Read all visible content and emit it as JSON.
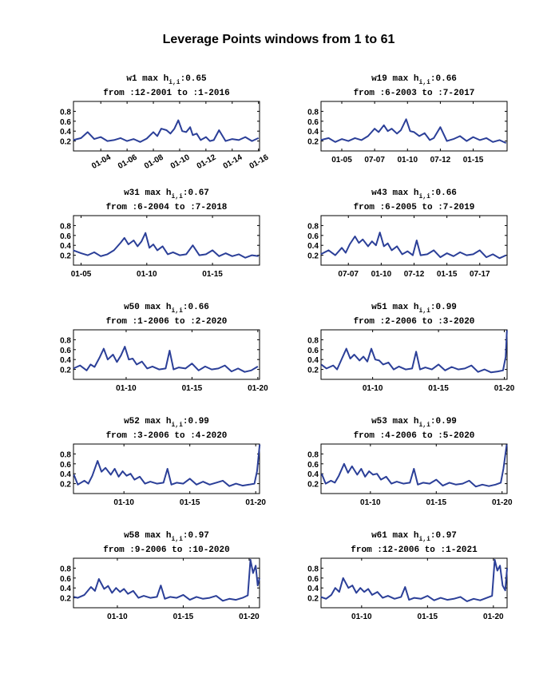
{
  "figure": {
    "title": "Leverage Points  windows from 1 to 61"
  },
  "style": {
    "line_color": "#2b3f98",
    "axis_color": "#000000",
    "background": "#ffffff"
  },
  "chart_data": [
    {
      "type": "line",
      "window": "1",
      "title_parts": [
        "w1 max h",
        "i,i",
        ":0.65"
      ],
      "subtitle": "from :12-2001 to :1-2016",
      "x_range": [
        2001.92,
        2016.08
      ],
      "ylim": [
        0,
        1
      ],
      "yticks": [
        0.2,
        0.4,
        0.6,
        0.8
      ],
      "xticks": [
        {
          "label": "01-04",
          "x": 2004
        },
        {
          "label": "01-06",
          "x": 2006
        },
        {
          "label": "01-08",
          "x": 2008
        },
        {
          "label": "01-10",
          "x": 2010
        },
        {
          "label": "01-12",
          "x": 2012
        },
        {
          "label": "01-14",
          "x": 2014
        },
        {
          "label": "01-16",
          "x": 2016
        }
      ],
      "xtick_rotation": -30,
      "x": [
        2001.9,
        2002.5,
        2003.0,
        2003.5,
        2004.0,
        2004.5,
        2005.0,
        2005.5,
        2006.0,
        2006.5,
        2007.0,
        2007.5,
        2008.0,
        2008.3,
        2008.6,
        2009.0,
        2009.3,
        2009.6,
        2009.9,
        2010.2,
        2010.5,
        2010.8,
        2011.0,
        2011.3,
        2011.6,
        2012.0,
        2012.3,
        2012.6,
        2013.0,
        2013.5,
        2014.0,
        2014.5,
        2015.0,
        2015.5,
        2016.0
      ],
      "values": [
        0.22,
        0.26,
        0.38,
        0.24,
        0.28,
        0.2,
        0.22,
        0.26,
        0.2,
        0.24,
        0.18,
        0.25,
        0.38,
        0.3,
        0.45,
        0.42,
        0.35,
        0.45,
        0.62,
        0.4,
        0.38,
        0.48,
        0.32,
        0.35,
        0.22,
        0.28,
        0.2,
        0.22,
        0.42,
        0.2,
        0.24,
        0.22,
        0.28,
        0.2,
        0.26
      ]
    },
    {
      "type": "line",
      "window": "19",
      "title_parts": [
        "w19 max h",
        "i,i",
        ":0.66"
      ],
      "subtitle": "from :6-2003 to :7-2017",
      "x_range": [
        2003.42,
        2017.58
      ],
      "ylim": [
        0,
        1
      ],
      "yticks": [
        0.2,
        0.4,
        0.6,
        0.8
      ],
      "xticks": [
        {
          "label": "01-05",
          "x": 2005
        },
        {
          "label": "07-07",
          "x": 2007.5
        },
        {
          "label": "01-10",
          "x": 2010
        },
        {
          "label": "07-12",
          "x": 2012.5
        },
        {
          "label": "01-15",
          "x": 2015
        }
      ],
      "xtick_rotation": 0,
      "x": [
        2003.4,
        2004.0,
        2004.5,
        2005.0,
        2005.5,
        2006.0,
        2006.5,
        2007.0,
        2007.5,
        2007.8,
        2008.2,
        2008.5,
        2008.8,
        2009.2,
        2009.5,
        2009.9,
        2010.2,
        2010.5,
        2010.9,
        2011.3,
        2011.7,
        2012.0,
        2012.5,
        2013.0,
        2013.5,
        2014.0,
        2014.5,
        2015.0,
        2015.5,
        2016.0,
        2016.5,
        2017.0,
        2017.5
      ],
      "values": [
        0.22,
        0.26,
        0.18,
        0.24,
        0.2,
        0.26,
        0.22,
        0.3,
        0.45,
        0.38,
        0.52,
        0.4,
        0.45,
        0.35,
        0.42,
        0.64,
        0.4,
        0.38,
        0.3,
        0.36,
        0.22,
        0.26,
        0.48,
        0.2,
        0.24,
        0.3,
        0.2,
        0.28,
        0.22,
        0.26,
        0.18,
        0.22,
        0.16
      ]
    },
    {
      "type": "line",
      "window": "31",
      "title_parts": [
        "w31 max h",
        "i,i",
        ":0.67"
      ],
      "subtitle": "from :6-2004 to :7-2018",
      "x_range": [
        2004.42,
        2018.58
      ],
      "ylim": [
        0,
        1
      ],
      "yticks": [
        0.2,
        0.4,
        0.6,
        0.8
      ],
      "xticks": [
        {
          "label": "01-05",
          "x": 2005
        },
        {
          "label": "01-10",
          "x": 2010
        },
        {
          "label": "01-15",
          "x": 2015
        }
      ],
      "xtick_rotation": 0,
      "x": [
        2004.4,
        2005.0,
        2005.5,
        2006.0,
        2006.5,
        2007.0,
        2007.5,
        2008.0,
        2008.3,
        2008.6,
        2009.0,
        2009.3,
        2009.6,
        2009.9,
        2010.2,
        2010.5,
        2010.8,
        2011.2,
        2011.6,
        2012.0,
        2012.5,
        2013.0,
        2013.5,
        2014.0,
        2014.5,
        2015.0,
        2015.5,
        2016.0,
        2016.5,
        2017.0,
        2017.5,
        2018.0,
        2018.5
      ],
      "values": [
        0.3,
        0.24,
        0.2,
        0.26,
        0.18,
        0.22,
        0.3,
        0.45,
        0.55,
        0.42,
        0.5,
        0.38,
        0.48,
        0.65,
        0.35,
        0.42,
        0.3,
        0.38,
        0.22,
        0.26,
        0.2,
        0.22,
        0.4,
        0.2,
        0.22,
        0.3,
        0.18,
        0.24,
        0.18,
        0.22,
        0.15,
        0.2,
        0.18
      ]
    },
    {
      "type": "line",
      "window": "43",
      "title_parts": [
        "w43 max h",
        "i,i",
        ":0.66"
      ],
      "subtitle": "from :6-2005 to :7-2019",
      "x_range": [
        2005.42,
        2019.58
      ],
      "ylim": [
        0,
        1
      ],
      "yticks": [
        0.2,
        0.4,
        0.6,
        0.8
      ],
      "xticks": [
        {
          "label": "07-07",
          "x": 2007.5
        },
        {
          "label": "01-10",
          "x": 2010
        },
        {
          "label": "07-12",
          "x": 2012.5
        },
        {
          "label": "01-15",
          "x": 2015
        },
        {
          "label": "07-17",
          "x": 2017.5
        }
      ],
      "xtick_rotation": 0,
      "x": [
        2005.4,
        2006.0,
        2006.5,
        2007.0,
        2007.3,
        2007.6,
        2008.0,
        2008.3,
        2008.6,
        2009.0,
        2009.3,
        2009.6,
        2009.9,
        2010.2,
        2010.5,
        2010.8,
        2011.2,
        2011.6,
        2012.0,
        2012.4,
        2012.7,
        2013.0,
        2013.5,
        2014.0,
        2014.5,
        2015.0,
        2015.5,
        2016.0,
        2016.5,
        2017.0,
        2017.5,
        2018.0,
        2018.5,
        2019.0,
        2019.5
      ],
      "values": [
        0.22,
        0.3,
        0.2,
        0.35,
        0.25,
        0.42,
        0.58,
        0.45,
        0.52,
        0.38,
        0.48,
        0.4,
        0.66,
        0.38,
        0.44,
        0.3,
        0.38,
        0.22,
        0.28,
        0.2,
        0.5,
        0.2,
        0.22,
        0.3,
        0.16,
        0.24,
        0.18,
        0.26,
        0.2,
        0.22,
        0.3,
        0.16,
        0.22,
        0.14,
        0.2
      ]
    },
    {
      "type": "line",
      "window": "50",
      "title_parts": [
        "w50 max h",
        "i,i",
        ":0.66"
      ],
      "subtitle": "from :1-2006 to :2-2020",
      "x_range": [
        2006.0,
        2020.13
      ],
      "ylim": [
        0,
        1
      ],
      "yticks": [
        0.2,
        0.4,
        0.6,
        0.8
      ],
      "xticks": [
        {
          "label": "01-10",
          "x": 2010
        },
        {
          "label": "01-15",
          "x": 2015
        },
        {
          "label": "01-20",
          "x": 2020
        }
      ],
      "xtick_rotation": 0,
      "x": [
        2006.0,
        2006.5,
        2007.0,
        2007.3,
        2007.6,
        2008.0,
        2008.3,
        2008.6,
        2009.0,
        2009.3,
        2009.6,
        2009.9,
        2010.2,
        2010.5,
        2010.8,
        2011.2,
        2011.6,
        2012.0,
        2012.5,
        2013.0,
        2013.3,
        2013.6,
        2014.0,
        2014.5,
        2015.0,
        2015.5,
        2016.0,
        2016.5,
        2017.0,
        2017.5,
        2018.0,
        2018.5,
        2019.0,
        2019.5,
        2020.0
      ],
      "values": [
        0.22,
        0.28,
        0.18,
        0.3,
        0.25,
        0.45,
        0.62,
        0.4,
        0.5,
        0.35,
        0.48,
        0.66,
        0.4,
        0.42,
        0.3,
        0.36,
        0.22,
        0.26,
        0.2,
        0.22,
        0.58,
        0.2,
        0.24,
        0.22,
        0.32,
        0.18,
        0.26,
        0.2,
        0.22,
        0.28,
        0.16,
        0.22,
        0.15,
        0.18,
        0.26
      ]
    },
    {
      "type": "line",
      "window": "51",
      "title_parts": [
        "w51 max h",
        "i,i",
        ":0.99"
      ],
      "subtitle": "from :2-2006 to :3-2020",
      "x_range": [
        2006.08,
        2020.21
      ],
      "ylim": [
        0,
        1
      ],
      "yticks": [
        0.2,
        0.4,
        0.6,
        0.8
      ],
      "xticks": [
        {
          "label": "01-10",
          "x": 2010
        },
        {
          "label": "01-15",
          "x": 2015
        },
        {
          "label": "01-20",
          "x": 2020
        }
      ],
      "xtick_rotation": 0,
      "x": [
        2006.1,
        2006.5,
        2007.0,
        2007.3,
        2007.6,
        2008.0,
        2008.3,
        2008.6,
        2009.0,
        2009.3,
        2009.6,
        2009.9,
        2010.2,
        2010.5,
        2010.8,
        2011.2,
        2011.6,
        2012.0,
        2012.5,
        2013.0,
        2013.3,
        2013.6,
        2014.0,
        2014.5,
        2015.0,
        2015.5,
        2016.0,
        2016.5,
        2017.0,
        2017.5,
        2018.0,
        2018.5,
        2019.0,
        2019.5,
        2019.9,
        2020.1,
        2020.2
      ],
      "values": [
        0.3,
        0.22,
        0.28,
        0.2,
        0.38,
        0.62,
        0.42,
        0.5,
        0.38,
        0.46,
        0.36,
        0.62,
        0.4,
        0.38,
        0.3,
        0.34,
        0.2,
        0.26,
        0.2,
        0.22,
        0.56,
        0.2,
        0.24,
        0.2,
        0.3,
        0.18,
        0.25,
        0.2,
        0.22,
        0.28,
        0.15,
        0.2,
        0.14,
        0.16,
        0.18,
        0.45,
        0.99
      ]
    },
    {
      "type": "line",
      "window": "52",
      "title_parts": [
        "w52 max h",
        "i,i",
        ":0.99"
      ],
      "subtitle": "from :3-2006 to :4-2020",
      "x_range": [
        2006.17,
        2020.29
      ],
      "ylim": [
        0,
        1
      ],
      "yticks": [
        0.2,
        0.4,
        0.6,
        0.8
      ],
      "xticks": [
        {
          "label": "01-10",
          "x": 2010
        },
        {
          "label": "01-15",
          "x": 2015
        },
        {
          "label": "01-20",
          "x": 2020
        }
      ],
      "xtick_rotation": 0,
      "x": [
        2006.2,
        2006.5,
        2007.0,
        2007.3,
        2007.6,
        2008.0,
        2008.3,
        2008.6,
        2009.0,
        2009.3,
        2009.6,
        2009.9,
        2010.2,
        2010.5,
        2010.8,
        2011.2,
        2011.6,
        2012.0,
        2012.5,
        2013.0,
        2013.3,
        2013.6,
        2014.0,
        2014.5,
        2015.0,
        2015.5,
        2016.0,
        2016.5,
        2017.0,
        2017.5,
        2018.0,
        2018.5,
        2019.0,
        2019.5,
        2019.9,
        2020.1,
        2020.3
      ],
      "values": [
        0.38,
        0.18,
        0.26,
        0.2,
        0.36,
        0.66,
        0.44,
        0.52,
        0.38,
        0.5,
        0.34,
        0.45,
        0.36,
        0.4,
        0.28,
        0.34,
        0.2,
        0.24,
        0.2,
        0.22,
        0.5,
        0.18,
        0.22,
        0.2,
        0.3,
        0.18,
        0.24,
        0.18,
        0.22,
        0.26,
        0.15,
        0.2,
        0.16,
        0.18,
        0.2,
        0.45,
        0.99
      ]
    },
    {
      "type": "line",
      "window": "53",
      "title_parts": [
        "w53 max h",
        "i,i",
        ":0.99"
      ],
      "subtitle": "from :4-2006 to :5-2020",
      "x_range": [
        2006.25,
        2020.38
      ],
      "ylim": [
        0,
        1
      ],
      "yticks": [
        0.2,
        0.4,
        0.6,
        0.8
      ],
      "xticks": [
        {
          "label": "01-10",
          "x": 2010
        },
        {
          "label": "01-15",
          "x": 2015
        },
        {
          "label": "01-20",
          "x": 2020
        }
      ],
      "xtick_rotation": 0,
      "x": [
        2006.3,
        2006.6,
        2007.0,
        2007.3,
        2007.6,
        2008.0,
        2008.3,
        2008.6,
        2009.0,
        2009.3,
        2009.6,
        2009.9,
        2010.2,
        2010.5,
        2010.8,
        2011.2,
        2011.6,
        2012.0,
        2012.5,
        2013.0,
        2013.3,
        2013.6,
        2014.0,
        2014.5,
        2015.0,
        2015.5,
        2016.0,
        2016.5,
        2017.0,
        2017.5,
        2018.0,
        2018.5,
        2019.0,
        2019.5,
        2019.9,
        2020.1,
        2020.35
      ],
      "values": [
        0.4,
        0.2,
        0.26,
        0.22,
        0.36,
        0.6,
        0.42,
        0.55,
        0.38,
        0.5,
        0.34,
        0.45,
        0.38,
        0.4,
        0.28,
        0.34,
        0.2,
        0.24,
        0.2,
        0.22,
        0.5,
        0.18,
        0.22,
        0.2,
        0.28,
        0.16,
        0.22,
        0.18,
        0.2,
        0.26,
        0.14,
        0.18,
        0.15,
        0.18,
        0.22,
        0.5,
        0.99
      ]
    },
    {
      "type": "line",
      "window": "58",
      "title_parts": [
        "w58 max h",
        "i,i",
        ":0.97"
      ],
      "subtitle": "from :9-2006 to :10-2020",
      "x_range": [
        2006.67,
        2020.79
      ],
      "ylim": [
        0,
        1
      ],
      "yticks": [
        0.2,
        0.4,
        0.6,
        0.8
      ],
      "xticks": [
        {
          "label": "01-10",
          "x": 2010
        },
        {
          "label": "01-15",
          "x": 2015
        },
        {
          "label": "01-20",
          "x": 2020
        }
      ],
      "xtick_rotation": 0,
      "x": [
        2006.7,
        2007.0,
        2007.5,
        2008.0,
        2008.3,
        2008.6,
        2009.0,
        2009.3,
        2009.6,
        2009.9,
        2010.2,
        2010.5,
        2010.8,
        2011.2,
        2011.6,
        2012.0,
        2012.5,
        2013.0,
        2013.3,
        2013.6,
        2014.0,
        2014.5,
        2015.0,
        2015.5,
        2016.0,
        2016.5,
        2017.0,
        2017.5,
        2018.0,
        2018.5,
        2019.0,
        2019.5,
        2019.9,
        2020.1,
        2020.3,
        2020.5,
        2020.65,
        2020.79
      ],
      "values": [
        0.22,
        0.2,
        0.26,
        0.42,
        0.34,
        0.58,
        0.38,
        0.44,
        0.3,
        0.4,
        0.32,
        0.38,
        0.28,
        0.34,
        0.2,
        0.24,
        0.2,
        0.22,
        0.45,
        0.18,
        0.22,
        0.2,
        0.26,
        0.16,
        0.22,
        0.18,
        0.2,
        0.24,
        0.14,
        0.18,
        0.16,
        0.2,
        0.25,
        0.97,
        0.7,
        0.85,
        0.45,
        0.6
      ]
    },
    {
      "type": "line",
      "window": "61",
      "title_parts": [
        "w61 max h",
        "i,i",
        ":0.97"
      ],
      "subtitle": "from :12-2006 to :1-2021",
      "x_range": [
        2006.92,
        2021.04
      ],
      "ylim": [
        0,
        1
      ],
      "yticks": [
        0.2,
        0.4,
        0.6,
        0.8
      ],
      "xticks": [
        {
          "label": "01-10",
          "x": 2010
        },
        {
          "label": "01-15",
          "x": 2015
        },
        {
          "label": "01-20",
          "x": 2020
        }
      ],
      "xtick_rotation": 0,
      "x": [
        2006.9,
        2007.3,
        2007.7,
        2008.0,
        2008.3,
        2008.6,
        2009.0,
        2009.3,
        2009.6,
        2009.9,
        2010.2,
        2010.5,
        2010.8,
        2011.2,
        2011.6,
        2012.0,
        2012.5,
        2013.0,
        2013.3,
        2013.6,
        2014.0,
        2014.5,
        2015.0,
        2015.5,
        2016.0,
        2016.5,
        2017.0,
        2017.5,
        2018.0,
        2018.5,
        2019.0,
        2019.5,
        2019.9,
        2020.1,
        2020.3,
        2020.5,
        2020.7,
        2020.9,
        2021.04
      ],
      "values": [
        0.22,
        0.18,
        0.26,
        0.4,
        0.32,
        0.6,
        0.4,
        0.45,
        0.3,
        0.4,
        0.32,
        0.38,
        0.26,
        0.32,
        0.2,
        0.24,
        0.18,
        0.22,
        0.42,
        0.16,
        0.2,
        0.18,
        0.24,
        0.15,
        0.2,
        0.16,
        0.18,
        0.22,
        0.13,
        0.18,
        0.15,
        0.2,
        0.24,
        0.97,
        0.75,
        0.85,
        0.45,
        0.35,
        0.8
      ]
    }
  ]
}
